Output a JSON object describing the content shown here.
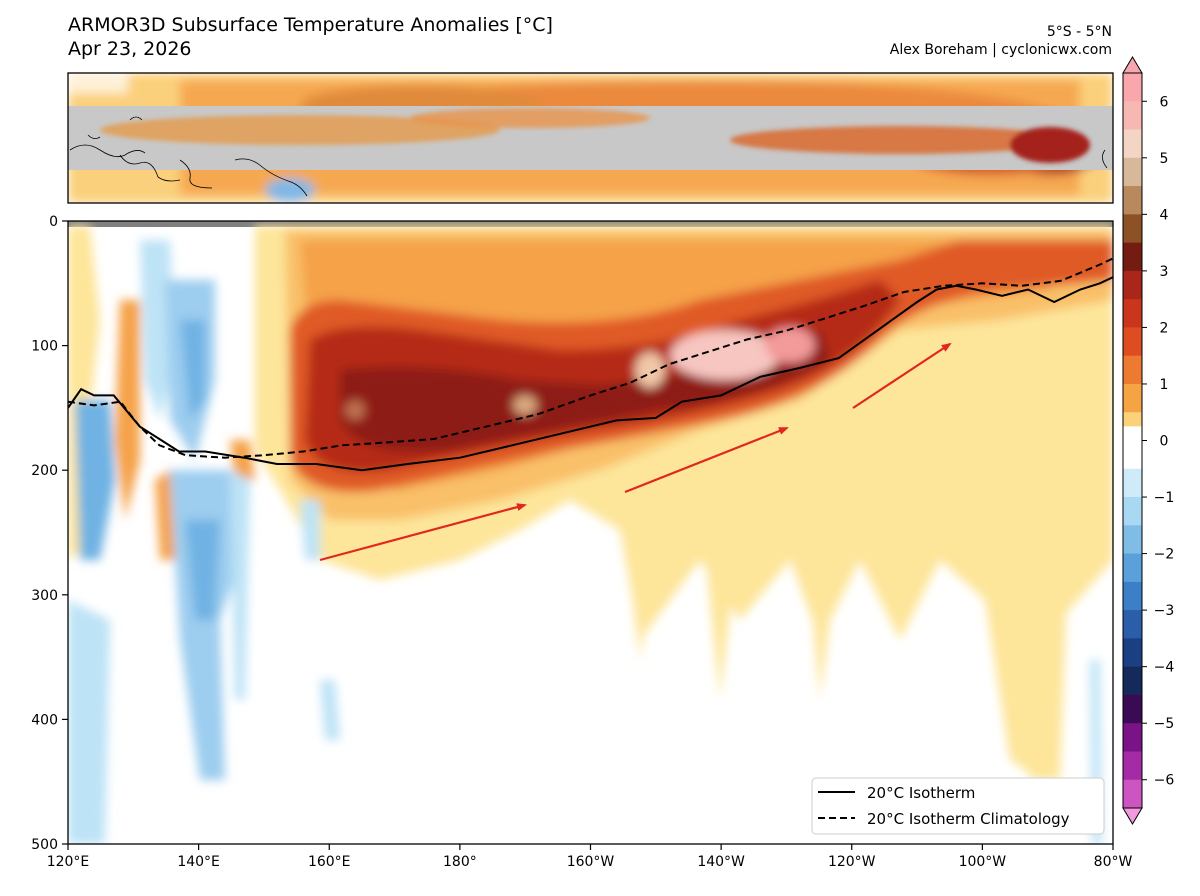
{
  "header": {
    "title": "ARMOR3D Subsurface Temperature Anomalies [°C]",
    "date": "Apr 23, 2026",
    "region": "5°S - 5°N",
    "credit": "Alex Boreham | cyclonicwx.com"
  },
  "colors": {
    "warm_light": "#fde59a",
    "warm_mid": "#f7a743",
    "warm_strong": "#d8401b",
    "warm_deep": "#8e1a12",
    "warm_peak": "#f7c6c0",
    "cool_light": "#bde3f6",
    "cool_mid": "#6fb2e3",
    "land_mask": "#c8c8c8",
    "arrow": "#e0281e"
  },
  "chart_data": {
    "type": "heatmap",
    "title": "ARMOR3D Subsurface Temperature Anomalies [°C]",
    "subtitle": "Apr 23, 2026",
    "x_axis": {
      "ticks": [
        "120°E",
        "140°E",
        "160°E",
        "180°",
        "160°W",
        "140°W",
        "120°W",
        "100°W",
        "80°W"
      ],
      "range_lon_east": [
        120,
        280
      ]
    },
    "y_axis": {
      "ticks": [
        "0",
        "100",
        "200",
        "300",
        "400",
        "500"
      ],
      "range": [
        0,
        500
      ],
      "inverted": true
    },
    "colorbar": {
      "ticks": [
        "6",
        "5",
        "4",
        "3",
        "2",
        "1",
        "0",
        "−1",
        "−2",
        "−3",
        "−4",
        "−5",
        "−6"
      ],
      "range": [
        -6.5,
        6.5
      ]
    },
    "isotherm_20c": {
      "name": "20°C Isotherm",
      "lon_east": [
        120,
        122,
        124,
        127,
        131,
        134,
        137,
        141,
        147,
        152,
        158,
        165,
        172,
        180,
        188,
        196,
        204,
        210,
        214,
        220,
        226,
        232,
        238,
        242,
        246,
        250,
        253,
        256,
        259,
        263,
        267,
        271,
        275,
        278,
        280
      ],
      "depth": [
        150,
        135,
        140,
        140,
        165,
        175,
        185,
        185,
        190,
        195,
        195,
        200,
        195,
        190,
        180,
        170,
        160,
        158,
        145,
        140,
        125,
        118,
        110,
        95,
        80,
        65,
        55,
        52,
        55,
        60,
        55,
        65,
        55,
        50,
        45
      ]
    },
    "isotherm_20c_climatology": {
      "name": "20°C Isotherm Climatology",
      "lon_east": [
        120,
        124,
        128,
        131,
        134,
        138,
        144,
        150,
        156,
        162,
        168,
        176,
        184,
        192,
        200,
        206,
        212,
        218,
        224,
        230,
        236,
        242,
        248,
        254,
        260,
        266,
        272,
        278,
        280
      ],
      "depth": [
        145,
        148,
        145,
        165,
        180,
        188,
        190,
        188,
        185,
        180,
        178,
        175,
        165,
        155,
        140,
        130,
        115,
        105,
        95,
        88,
        78,
        68,
        57,
        52,
        50,
        52,
        48,
        35,
        30
      ]
    },
    "legend": {
      "placement": "bottom-right"
    }
  }
}
